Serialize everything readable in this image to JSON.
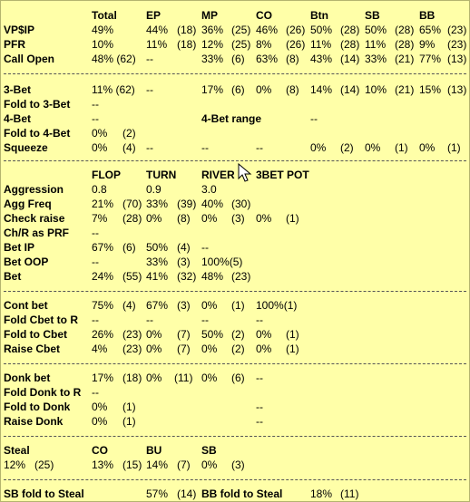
{
  "header": {
    "labels": [
      "Total",
      "EP",
      "MP",
      "CO",
      "Btn",
      "SB",
      "BB"
    ]
  },
  "preflop": [
    {
      "label": "VP$IP",
      "cells": [
        "49%",
        "44%",
        "(18)",
        "36%",
        "(25)",
        "46%",
        "(26)",
        "50%",
        "(28)",
        "50%",
        "(28)",
        "65%",
        "(23)"
      ]
    },
    {
      "label": "PFR",
      "cells": [
        "10%",
        "11%",
        "(18)",
        "12%",
        "(25)",
        "8%",
        "(26)",
        "11%",
        "(28)",
        "11%",
        "(28)",
        "9%",
        "(23)"
      ]
    },
    {
      "label": "Call Open",
      "cells": [
        "48% (62)",
        "--",
        "",
        "33%",
        "(6)",
        "63%",
        "(8)",
        "43%",
        "(14)",
        "33%",
        "(21)",
        "77%",
        "(13)"
      ]
    }
  ],
  "threebet": {
    "threebet_row": {
      "label": "3-Bet",
      "cells": [
        "11% (62)",
        "--",
        "",
        "17%",
        "(6)",
        "0%",
        "(8)",
        "14%",
        "(14)",
        "10%",
        "(21)",
        "15%",
        "(13)"
      ]
    },
    "fold_to_3bet": {
      "label": "Fold to 3-Bet",
      "value": "--"
    },
    "fourbet": {
      "label": "4-Bet",
      "value": "--",
      "range_label": "4-Bet range",
      "range_value": "--"
    },
    "fold_to_4bet": {
      "label": "Fold to 4-Bet",
      "value": "0%",
      "count": "(2)"
    },
    "squeeze": {
      "label": "Squeeze",
      "cells": [
        "0%",
        "(4)",
        "--",
        "--",
        "--",
        "0%",
        "(2)",
        "0%",
        "(1)",
        "0%",
        "(1)"
      ]
    }
  },
  "postflop": {
    "headers": [
      "FLOP",
      "TURN",
      "RIVER",
      "3BET POT"
    ],
    "rows": [
      {
        "label": "Aggression",
        "cells": [
          "0.8",
          "",
          "0.9",
          "",
          "3.0",
          "",
          "",
          ""
        ]
      },
      {
        "label": "Agg Freq",
        "cells": [
          "21%",
          "(70)",
          "33%",
          "(39)",
          "40%",
          "(30)",
          "",
          ""
        ]
      },
      {
        "label": "Check raise",
        "cells": [
          "7%",
          "(28)",
          "0%",
          "(8)",
          "0%",
          "(3)",
          "0%",
          "(1)"
        ]
      },
      {
        "label": "Ch/R as PRF",
        "cells": [
          "--",
          "",
          "",
          "",
          "",
          "",
          "",
          ""
        ]
      },
      {
        "label": "Bet IP",
        "cells": [
          "67%",
          "(6)",
          "50%",
          "(4)",
          "--",
          "",
          "",
          ""
        ]
      },
      {
        "label": "Bet OOP",
        "cells": [
          "--",
          "",
          "33%",
          "(3)",
          "100%(5)",
          "",
          "",
          ""
        ]
      },
      {
        "label": "Bet",
        "cells": [
          "24%",
          "(55)",
          "41%",
          "(32)",
          "48%",
          "(23)",
          "",
          ""
        ]
      }
    ]
  },
  "cbet": [
    {
      "label": "Cont bet",
      "cells": [
        "75%",
        "(4)",
        "67%",
        "(3)",
        "0%",
        "(1)",
        "100%(1)",
        ""
      ]
    },
    {
      "label": "Fold Cbet to R",
      "cells": [
        "--",
        "",
        "--",
        "",
        "--",
        "",
        "--",
        ""
      ]
    },
    {
      "label": "Fold to Cbet",
      "cells": [
        "26%",
        "(23)",
        "0%",
        "(7)",
        "50%",
        "(2)",
        "0%",
        "(1)"
      ]
    },
    {
      "label": "Raise Cbet",
      "cells": [
        "4%",
        "(23)",
        "0%",
        "(7)",
        "0%",
        "(2)",
        "0%",
        "(1)"
      ]
    }
  ],
  "donk": [
    {
      "label": "Donk bet",
      "cells": [
        "17%",
        "(18)",
        "0%",
        "(11)",
        "0%",
        "(6)",
        "--",
        ""
      ]
    },
    {
      "label": "Fold Donk to R",
      "cells": [
        "--",
        "",
        "",
        "",
        "",
        "",
        "",
        ""
      ]
    },
    {
      "label": "Fold to Donk",
      "cells": [
        "0%",
        "(1)",
        "",
        "",
        "",
        "",
        "--",
        ""
      ]
    },
    {
      "label": "Raise Donk",
      "cells": [
        "0%",
        "(1)",
        "",
        "",
        "",
        "",
        "--",
        ""
      ]
    }
  ],
  "steal": {
    "label": "Steal",
    "headers": [
      "CO",
      "BU",
      "SB"
    ],
    "total": "12%",
    "total_count": "(25)",
    "cells": [
      "13%",
      "(15)",
      "14%",
      "(7)",
      "0%",
      "(3)"
    ]
  },
  "steal_fold": {
    "sb_label": "SB fold to Steal",
    "sb_value": "57%",
    "sb_count": "(14)",
    "bb_label": "BB fold to Steal",
    "bb_value": "18%",
    "bb_count": "(11)"
  },
  "colors": {
    "background": "#ffffa8",
    "border": "#b4b46e",
    "text": "#000000"
  },
  "icons": {
    "cursor": "mouse-pointer-icon"
  }
}
